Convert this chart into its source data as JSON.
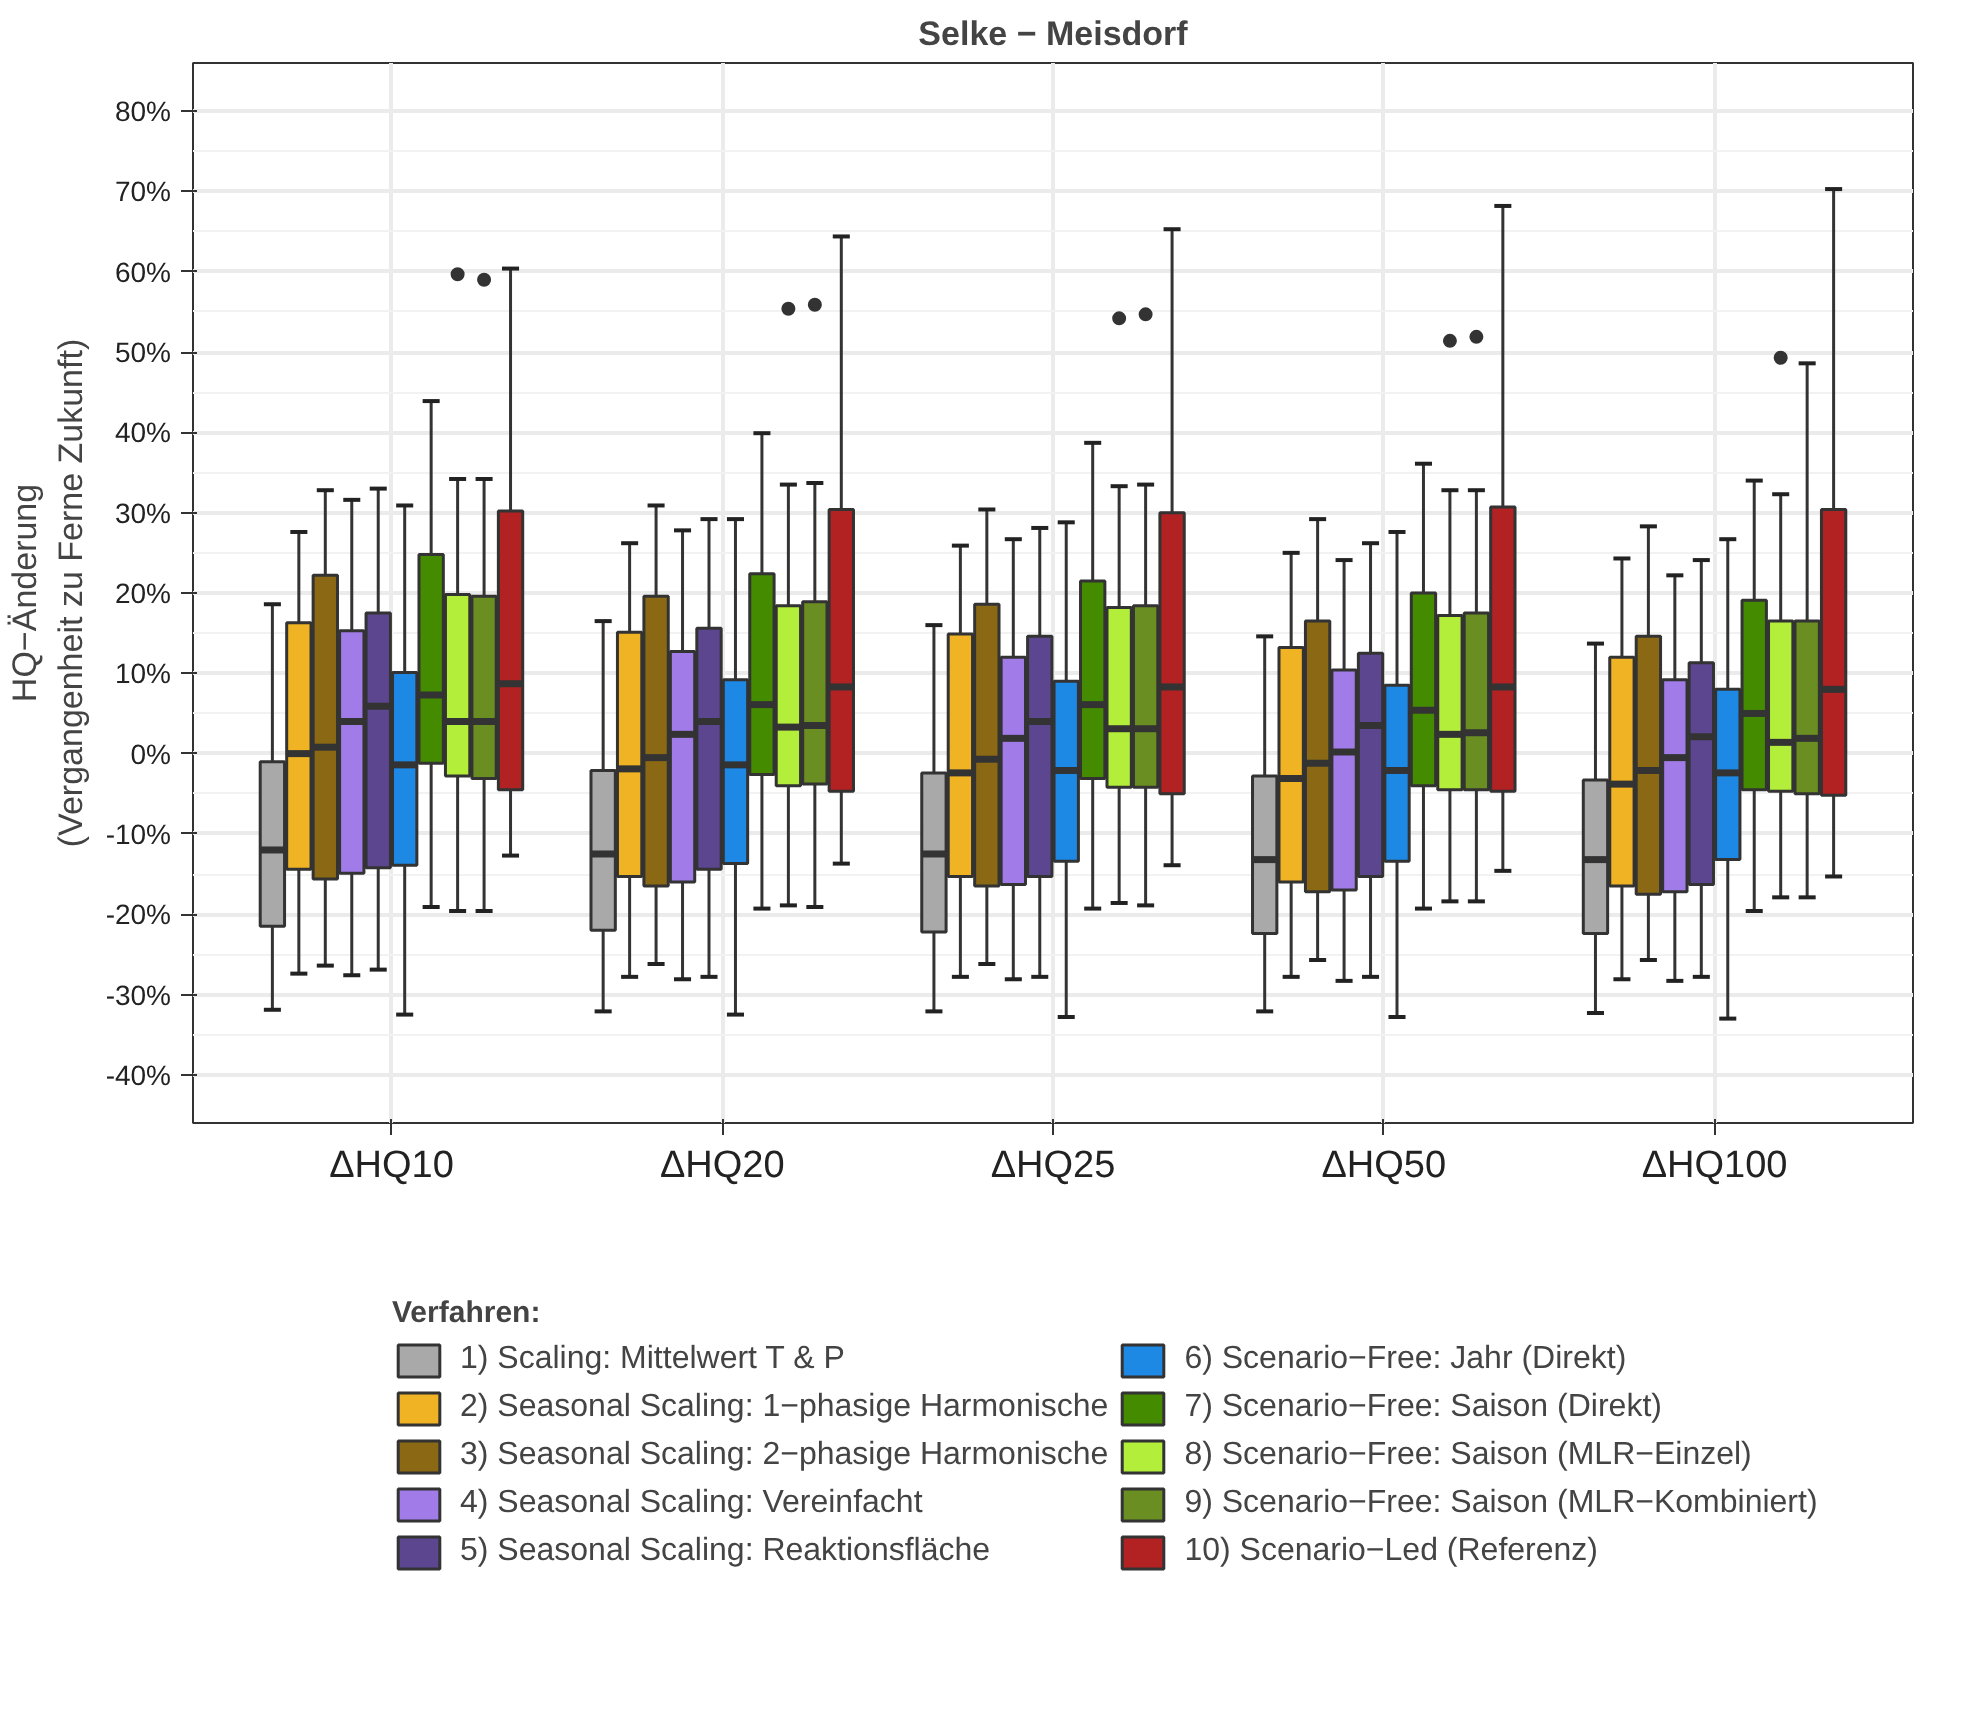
{
  "chart_data": {
    "type": "box",
    "title": "Selke − Meisdorf",
    "ylabel": "HQ−Änderung\n(Vergangenheit zu Ferne Zukunft)",
    "legend_title": "Verfahren:",
    "categories": [
      "ΔHQ10",
      "ΔHQ20",
      "ΔHQ25",
      "ΔHQ50",
      "ΔHQ100"
    ],
    "ylim": [
      -46,
      86
    ],
    "yticks": [
      {
        "value": -40,
        "label": "-40%"
      },
      {
        "value": -30,
        "label": "-30%"
      },
      {
        "value": -20,
        "label": "-20%"
      },
      {
        "value": -10,
        "label": "-10%"
      },
      {
        "value": 0,
        "label": "0%"
      },
      {
        "value": 10,
        "label": "10%"
      },
      {
        "value": 20,
        "label": "20%"
      },
      {
        "value": 30,
        "label": "30%"
      },
      {
        "value": 40,
        "label": "40%"
      },
      {
        "value": 50,
        "label": "50%"
      },
      {
        "value": 60,
        "label": "60%"
      },
      {
        "value": 70,
        "label": "70%"
      },
      {
        "value": 80,
        "label": "80%"
      }
    ],
    "grid": true,
    "legend": "bottom",
    "series": [
      {
        "name": "1) Scaling: Mittelwert T & P",
        "color": "#a9a9a9",
        "boxes": [
          {
            "low": -31.9,
            "q1": -21.5,
            "median": -12,
            "q3": -1,
            "high": 18.6
          },
          {
            "low": -32.1,
            "q1": -22,
            "median": -12.5,
            "q3": -2.1,
            "high": 16.5
          },
          {
            "low": -32.1,
            "q1": -22.2,
            "median": -12.5,
            "q3": -2.4,
            "high": 16
          },
          {
            "low": -32.1,
            "q1": -22.4,
            "median": -13.2,
            "q3": -2.8,
            "high": 14.6
          },
          {
            "low": -32.3,
            "q1": -22.4,
            "median": -13.2,
            "q3": -3.3,
            "high": 13.7
          }
        ]
      },
      {
        "name": "2) Seasonal Scaling: 1−phasige Harmonische",
        "color": "#f0b323",
        "boxes": [
          {
            "low": -27.4,
            "q1": -14.4,
            "median": 0,
            "q3": 16.3,
            "high": 27.6
          },
          {
            "low": -27.8,
            "q1": -15.3,
            "median": -1.9,
            "q3": 15.1,
            "high": 26.2
          },
          {
            "low": -27.8,
            "q1": -15.3,
            "median": -2.4,
            "q3": 14.9,
            "high": 25.9
          },
          {
            "low": -27.8,
            "q1": -16,
            "median": -3.1,
            "q3": 13.2,
            "high": 25
          },
          {
            "low": -28.1,
            "q1": -16.5,
            "median": -3.8,
            "q3": 12,
            "high": 24.3
          }
        ]
      },
      {
        "name": "3) Seasonal Scaling: 2−phasige Harmonische",
        "color": "#8b6914",
        "boxes": [
          {
            "low": -26.4,
            "q1": -15.6,
            "median": 0.8,
            "q3": 22.2,
            "high": 32.8
          },
          {
            "low": -26.2,
            "q1": -16.5,
            "median": -0.5,
            "q3": 19.6,
            "high": 30.9
          },
          {
            "low": -26.2,
            "q1": -16.5,
            "median": -0.7,
            "q3": 18.6,
            "high": 30.4
          },
          {
            "low": -25.7,
            "q1": -17.2,
            "median": -1.2,
            "q3": 16.5,
            "high": 29.2
          },
          {
            "low": -25.7,
            "q1": -17.5,
            "median": -2.1,
            "q3": 14.6,
            "high": 28.3
          }
        ]
      },
      {
        "name": "4) Seasonal Scaling: Vereinfacht",
        "color": "#a17ce8",
        "boxes": [
          {
            "low": -27.6,
            "q1": -14.9,
            "median": 4,
            "q3": 15.3,
            "high": 31.6
          },
          {
            "low": -28.1,
            "q1": -16,
            "median": 2.4,
            "q3": 12.7,
            "high": 27.8
          },
          {
            "low": -28.1,
            "q1": -16.3,
            "median": 1.9,
            "q3": 12,
            "high": 26.7
          },
          {
            "low": -28.3,
            "q1": -17,
            "median": 0.2,
            "q3": 10.4,
            "high": 24.1
          },
          {
            "low": -28.3,
            "q1": -17.2,
            "median": -0.5,
            "q3": 9.2,
            "high": 22.2
          }
        ]
      },
      {
        "name": "5) Seasonal Scaling: Reaktionsfläche",
        "color": "#5c4690",
        "boxes": [
          {
            "low": -26.9,
            "q1": -14.2,
            "median": 5.9,
            "q3": 17.5,
            "high": 33
          },
          {
            "low": -27.8,
            "q1": -14.4,
            "median": 4,
            "q3": 15.6,
            "high": 29.2
          },
          {
            "low": -27.8,
            "q1": -15.3,
            "median": 4,
            "q3": 14.6,
            "high": 28.1
          },
          {
            "low": -27.8,
            "q1": -15.3,
            "median": 3.5,
            "q3": 12.5,
            "high": 26.2
          },
          {
            "low": -27.8,
            "q1": -16.3,
            "median": 2.1,
            "q3": 11.3,
            "high": 24.1
          }
        ]
      },
      {
        "name": "6) Scenario−Free: Jahr (Direkt)",
        "color": "#1e88e5",
        "boxes": [
          {
            "low": -32.5,
            "q1": -13.9,
            "median": -1.4,
            "q3": 10.1,
            "high": 30.9
          },
          {
            "low": -32.5,
            "q1": -13.7,
            "median": -1.4,
            "q3": 9.2,
            "high": 29.2
          },
          {
            "low": -32.8,
            "q1": -13.4,
            "median": -2.1,
            "q3": 9,
            "high": 28.8
          },
          {
            "low": -32.8,
            "q1": -13.4,
            "median": -2.1,
            "q3": 8.5,
            "high": 27.6
          },
          {
            "low": -33,
            "q1": -13.2,
            "median": -2.4,
            "q3": 8,
            "high": 26.7
          }
        ]
      },
      {
        "name": "7) Scenario−Free: Saison (Direkt)",
        "color": "#458b00",
        "boxes": [
          {
            "low": -19.1,
            "q1": -1.2,
            "median": 7.3,
            "q3": 24.8,
            "high": 43.9
          },
          {
            "low": -19.3,
            "q1": -2.6,
            "median": 6.1,
            "q3": 22.4,
            "high": 39.9
          },
          {
            "low": -19.3,
            "q1": -3.1,
            "median": 6.1,
            "q3": 21.5,
            "high": 38.7
          },
          {
            "low": -19.3,
            "q1": -4,
            "median": 5.4,
            "q3": 20,
            "high": 36.1
          },
          {
            "low": -19.6,
            "q1": -4.5,
            "median": 5,
            "q3": 19.1,
            "high": 34
          }
        ]
      },
      {
        "name": "8) Scenario−Free: Saison (MLR−Einzel)",
        "color": "#b3ee3a",
        "boxes": [
          {
            "low": -19.6,
            "q1": -2.8,
            "median": 4,
            "q3": 19.8,
            "high": 34.2,
            "outliers": [
              59.7
            ]
          },
          {
            "low": -18.9,
            "q1": -4,
            "median": 3.3,
            "q3": 18.4,
            "high": 33.5,
            "outliers": [
              55.4
            ]
          },
          {
            "low": -18.6,
            "q1": -4.2,
            "median": 3.1,
            "q3": 18.2,
            "high": 33.3,
            "outliers": [
              54.2
            ]
          },
          {
            "low": -18.4,
            "q1": -4.5,
            "median": 2.4,
            "q3": 17.2,
            "high": 32.8,
            "outliers": [
              51.4
            ]
          },
          {
            "low": -17.9,
            "q1": -4.7,
            "median": 1.4,
            "q3": 16.5,
            "high": 32.3,
            "outliers": [
              49.3
            ]
          }
        ]
      },
      {
        "name": "9) Scenario−Free: Saison (MLR−Kombiniert)",
        "color": "#6b8e23",
        "boxes": [
          {
            "low": -19.6,
            "q1": -3.1,
            "median": 4,
            "q3": 19.6,
            "high": 34.2,
            "outliers": [
              59
            ]
          },
          {
            "low": -19.1,
            "q1": -3.8,
            "median": 3.5,
            "q3": 18.9,
            "high": 33.7,
            "outliers": [
              55.9
            ]
          },
          {
            "low": -18.9,
            "q1": -4.2,
            "median": 3.1,
            "q3": 18.4,
            "high": 33.5,
            "outliers": [
              54.7
            ]
          },
          {
            "low": -18.4,
            "q1": -4.5,
            "median": 2.6,
            "q3": 17.5,
            "high": 32.8,
            "outliers": [
              51.9
            ]
          },
          {
            "low": -17.9,
            "q1": -5,
            "median": 1.9,
            "q3": 16.5,
            "high": 48.6
          }
        ]
      },
      {
        "name": "10) Scenario−Led (Referenz)",
        "color": "#b22222",
        "boxes": [
          {
            "low": -12.7,
            "q1": -4.5,
            "median": 8.7,
            "q3": 30.2,
            "high": 60.4
          },
          {
            "low": -13.7,
            "q1": -4.7,
            "median": 8.3,
            "q3": 30.4,
            "high": 64.4
          },
          {
            "low": -13.9,
            "q1": -5,
            "median": 8.3,
            "q3": 30,
            "high": 65.3
          },
          {
            "low": -14.6,
            "q1": -4.7,
            "median": 8.3,
            "q3": 30.7,
            "high": 68.2
          },
          {
            "low": -15.3,
            "q1": -5.2,
            "median": 8,
            "q3": 30.4,
            "high": 70.3
          }
        ]
      }
    ]
  }
}
